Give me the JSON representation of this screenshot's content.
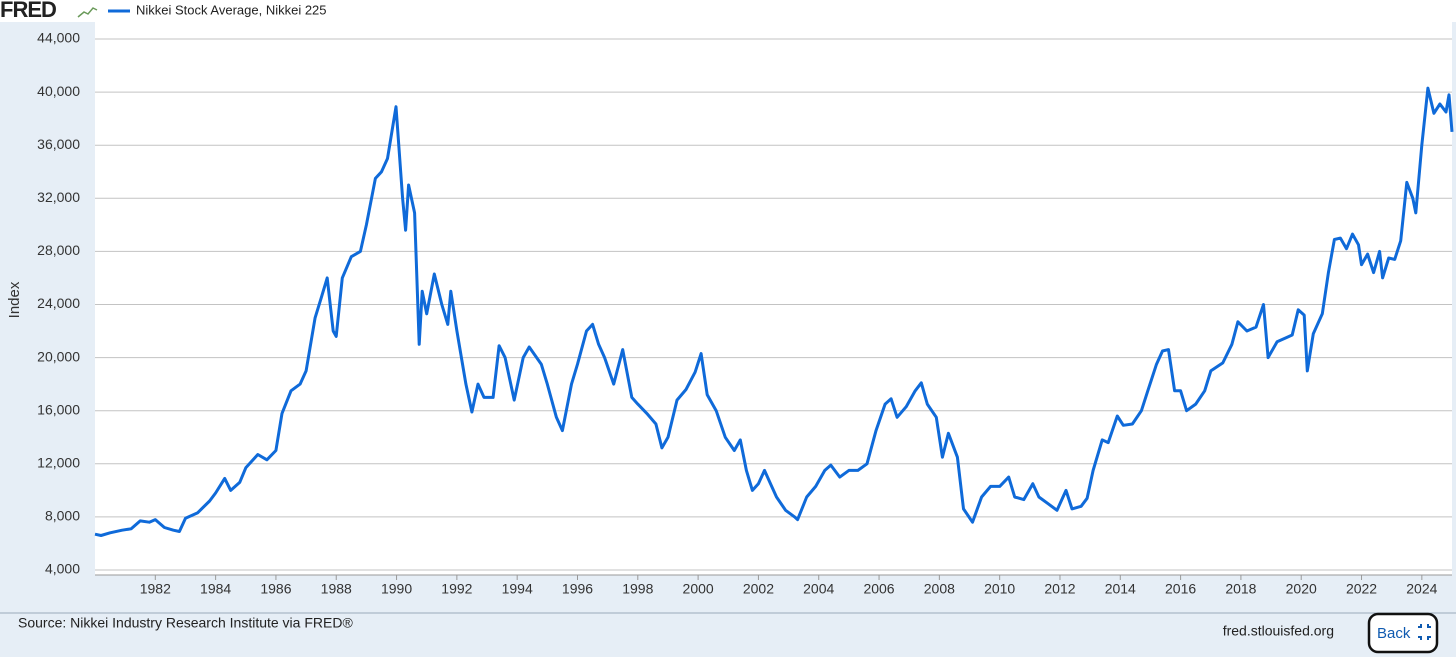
{
  "header": {
    "logo": "FRED",
    "footer_source": "Source: Nikkei Industry Research Institute via FRED®",
    "footer_site": "fred.stlouisfed.org",
    "back_button": "Back"
  },
  "chart_data": {
    "type": "line",
    "ylabel": "Index",
    "grid": true,
    "xlim": [
      1980,
      2025
    ],
    "ylim": [
      4000,
      44000
    ],
    "xticks": [
      1982,
      1984,
      1986,
      1988,
      1990,
      1992,
      1994,
      1996,
      1998,
      2000,
      2002,
      2004,
      2006,
      2008,
      2010,
      2012,
      2014,
      2016,
      2018,
      2020,
      2022,
      2024
    ],
    "yticks": [
      {
        "value": 4000,
        "label": "4,000"
      },
      {
        "value": 8000,
        "label": "8,000"
      },
      {
        "value": 12000,
        "label": "12,000"
      },
      {
        "value": 16000,
        "label": "16,000"
      },
      {
        "value": 20000,
        "label": "20,000"
      },
      {
        "value": 24000,
        "label": "24,000"
      },
      {
        "value": 28000,
        "label": "28,000"
      },
      {
        "value": 32000,
        "label": "32,000"
      },
      {
        "value": 36000,
        "label": "36,000"
      },
      {
        "value": 40000,
        "label": "40,000"
      },
      {
        "value": 44000,
        "label": "44,000"
      }
    ],
    "x": [
      1980.0,
      1980.2,
      1980.5,
      1980.9,
      1981.2,
      1981.5,
      1981.8,
      1982.0,
      1982.3,
      1982.6,
      1982.8,
      1983.0,
      1983.4,
      1983.8,
      1984.0,
      1984.3,
      1984.5,
      1984.8,
      1985.0,
      1985.4,
      1985.7,
      1986.0,
      1986.2,
      1986.5,
      1986.8,
      1987.0,
      1987.3,
      1987.5,
      1987.7,
      1987.9,
      1988.0,
      1988.2,
      1988.5,
      1988.8,
      1989.0,
      1989.3,
      1989.5,
      1989.7,
      1989.98,
      1990.2,
      1990.3,
      1990.4,
      1990.6,
      1990.75,
      1990.85,
      1991.0,
      1991.25,
      1991.5,
      1991.7,
      1991.8,
      1992.0,
      1992.3,
      1992.5,
      1992.7,
      1992.9,
      1993.2,
      1993.4,
      1993.6,
      1993.9,
      1994.2,
      1994.4,
      1994.8,
      1995.0,
      1995.3,
      1995.5,
      1995.8,
      1996.0,
      1996.3,
      1996.5,
      1996.7,
      1996.9,
      1997.2,
      1997.5,
      1997.8,
      1998.0,
      1998.3,
      1998.6,
      1998.8,
      1999.0,
      1999.3,
      1999.6,
      1999.9,
      2000.1,
      2000.3,
      2000.6,
      2000.9,
      2001.2,
      2001.4,
      2001.6,
      2001.8,
      2002.0,
      2002.2,
      2002.4,
      2002.6,
      2002.9,
      2003.2,
      2003.3,
      2003.6,
      2003.9,
      2004.2,
      2004.4,
      2004.7,
      2005.0,
      2005.3,
      2005.6,
      2005.9,
      2006.2,
      2006.4,
      2006.6,
      2006.9,
      2007.2,
      2007.4,
      2007.6,
      2007.9,
      2008.1,
      2008.3,
      2008.6,
      2008.8,
      2009.1,
      2009.4,
      2009.7,
      2010.0,
      2010.3,
      2010.5,
      2010.8,
      2011.1,
      2011.3,
      2011.6,
      2011.9,
      2012.2,
      2012.4,
      2012.7,
      2012.9,
      2013.1,
      2013.4,
      2013.6,
      2013.9,
      2014.1,
      2014.4,
      2014.7,
      2014.9,
      2015.2,
      2015.4,
      2015.6,
      2015.8,
      2016.0,
      2016.2,
      2016.5,
      2016.8,
      2017.0,
      2017.4,
      2017.7,
      2017.9,
      2018.2,
      2018.5,
      2018.75,
      2018.9,
      2019.2,
      2019.5,
      2019.7,
      2019.9,
      2020.1,
      2020.2,
      2020.4,
      2020.7,
      2020.9,
      2021.1,
      2021.3,
      2021.5,
      2021.7,
      2021.9,
      2022.0,
      2022.2,
      2022.4,
      2022.6,
      2022.7,
      2022.9,
      2023.1,
      2023.3,
      2023.5,
      2023.7,
      2023.8,
      2024.0,
      2024.2,
      2024.4,
      2024.6,
      2024.8,
      2024.9,
      2025.0
    ],
    "series": [
      {
        "name": "Nikkei Stock Average, Nikkei 225",
        "color": "#0f6ad9",
        "values": [
          6700,
          6600,
          6800,
          7000,
          7100,
          7700,
          7600,
          7800,
          7200,
          7000,
          6900,
          7900,
          8300,
          9200,
          9800,
          10900,
          10000,
          10600,
          11700,
          12700,
          12300,
          13000,
          15800,
          17500,
          18000,
          19000,
          23000,
          24500,
          26000,
          22000,
          21600,
          26000,
          27600,
          28000,
          30000,
          33500,
          34000,
          35000,
          38900,
          32000,
          29600,
          33000,
          30900,
          21000,
          25000,
          23300,
          26300,
          24000,
          22500,
          25000,
          22000,
          18000,
          15900,
          18000,
          17000,
          17000,
          20900,
          20000,
          16800,
          20000,
          20800,
          19500,
          18000,
          15500,
          14500,
          18000,
          19500,
          22000,
          22500,
          21000,
          20000,
          18000,
          20600,
          17000,
          16500,
          15800,
          15000,
          13200,
          14000,
          16800,
          17600,
          18900,
          20300,
          17200,
          16000,
          14000,
          13000,
          13800,
          11500,
          10000,
          10500,
          11500,
          10500,
          9500,
          8500,
          8000,
          7800,
          9500,
          10300,
          11500,
          11900,
          11000,
          11500,
          11500,
          12000,
          14500,
          16500,
          16900,
          15500,
          16300,
          17500,
          18100,
          16500,
          15500,
          12500,
          14300,
          12500,
          8600,
          7600,
          9500,
          10300,
          10300,
          11000,
          9500,
          9300,
          10500,
          9500,
          9000,
          8500,
          10000,
          8600,
          8800,
          9400,
          11500,
          13800,
          13600,
          15600,
          14900,
          15000,
          16000,
          17400,
          19500,
          20500,
          20600,
          17500,
          17500,
          16000,
          16500,
          17500,
          19000,
          19600,
          21000,
          22700,
          22000,
          22300,
          24000,
          20000,
          21200,
          21500,
          21700,
          23600,
          23200,
          19000,
          21800,
          23300,
          26400,
          28900,
          29000,
          28200,
          29300,
          28500,
          27000,
          27800,
          26400,
          28000,
          26000,
          27500,
          27400,
          28800,
          33200,
          32000,
          30900,
          36000,
          40300,
          38400,
          39100,
          38500,
          39800,
          37000
        ]
      }
    ]
  }
}
